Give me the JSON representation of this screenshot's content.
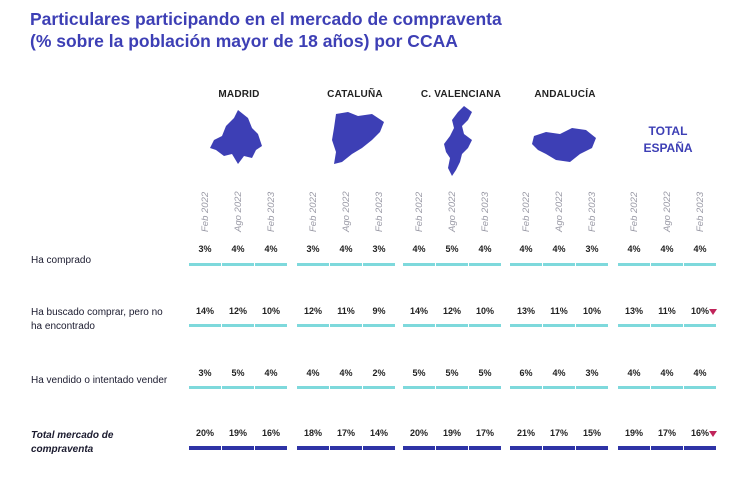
{
  "title_line1": "Particulares participando en el mercado de compraventa",
  "title_line2": "(% sobre la población mayor de 18 años) por CCAA",
  "colors": {
    "title": "#3d3fb5",
    "map": "#3d3fb5",
    "bar": "#7ed9dc",
    "total_bar": "#2e33a6",
    "marker": "#c0245a"
  },
  "chart_data": {
    "type": "table",
    "periods": [
      "Feb 2022",
      "Ago 2022",
      "Feb 2023"
    ],
    "regions": [
      {
        "name": "MADRID",
        "icon": "madrid-map-icon"
      },
      {
        "name": "CATALUÑA",
        "icon": "cataluna-map-icon"
      },
      {
        "name": "C. VALENCIANA",
        "icon": "valenciana-map-icon"
      },
      {
        "name": "ANDALUCÍA",
        "icon": "andalucia-map-icon"
      },
      {
        "name_line1": "TOTAL",
        "name_line2": "ESPAÑA"
      }
    ],
    "rows": [
      {
        "label": "Ha comprado",
        "values": [
          [
            3,
            4,
            4
          ],
          [
            3,
            4,
            3
          ],
          [
            4,
            5,
            4
          ],
          [
            4,
            4,
            3
          ],
          [
            4,
            4,
            4
          ]
        ],
        "total_row": false
      },
      {
        "label_line1": "Ha buscado comprar, pero no",
        "label_line2": "ha encontrado",
        "values": [
          [
            14,
            12,
            10
          ],
          [
            12,
            11,
            9
          ],
          [
            14,
            12,
            10
          ],
          [
            13,
            11,
            10
          ],
          [
            13,
            11,
            10
          ]
        ],
        "total_row": false,
        "marker_on_last": true
      },
      {
        "label": "Ha vendido o intentado vender",
        "values": [
          [
            3,
            5,
            4
          ],
          [
            4,
            4,
            2
          ],
          [
            5,
            5,
            5
          ],
          [
            6,
            4,
            3
          ],
          [
            4,
            4,
            4
          ]
        ],
        "total_row": false
      },
      {
        "label_line1": "Total mercado de",
        "label_line2": "compraventa",
        "values": [
          [
            20,
            19,
            16
          ],
          [
            18,
            17,
            14
          ],
          [
            20,
            19,
            17
          ],
          [
            21,
            17,
            15
          ],
          [
            19,
            17,
            16
          ]
        ],
        "total_row": true,
        "marker_on_last": true
      }
    ],
    "unit": "%"
  }
}
